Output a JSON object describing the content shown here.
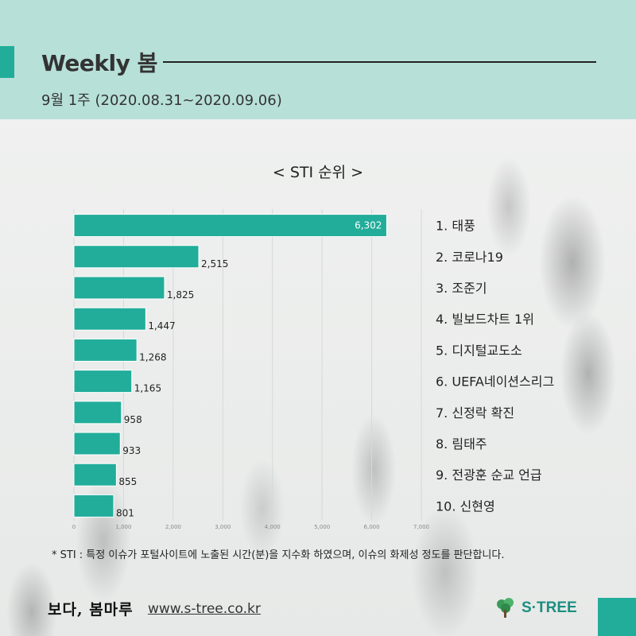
{
  "header": {
    "title": "Weekly 봄",
    "week": "9월 1주 (2020.08.31~2020.09.06)"
  },
  "colors": {
    "accent": "#21ad9a",
    "header_bg": "#b2ded6",
    "bar": "#21ad9a"
  },
  "chart_data": {
    "type": "bar",
    "orientation": "horizontal",
    "title": "< STI 순위 >",
    "categories": [
      "1. 태풍",
      "2. 코로나19",
      "3. 조준기",
      "4. 빌보드차트 1위",
      "5. 디지털교도소",
      "6. UEFA네이션스리그",
      "7. 신정락 확진",
      "8. 림태주",
      "9. 전광훈 순교 언급",
      "10. 신현영"
    ],
    "values": [
      6302,
      2515,
      1825,
      1447,
      1268,
      1165,
      958,
      933,
      855,
      801
    ],
    "value_labels": [
      "6,302",
      "2,515",
      "1,825",
      "1,447",
      "1,268",
      "1,165",
      "958",
      "933",
      "855",
      "801"
    ],
    "xlim": [
      0,
      7000
    ],
    "x_ticks": [
      "0",
      "1,000",
      "2,000",
      "3,000",
      "4,000",
      "5,000",
      "6,000",
      "7,000"
    ],
    "grid": true,
    "legend": "none"
  },
  "footnote": "* STI : 특정 이슈가 포털사이트에 노출된 시간(분)을 지수화 하였으며, 이슈의 화제성 정도를 판단합니다.",
  "footer": {
    "bomaru_logo": "보다, 봄마루",
    "site": "www.s-tree.co.kr",
    "brand": "S·TREE",
    "brand_icon": "tree-icon"
  }
}
